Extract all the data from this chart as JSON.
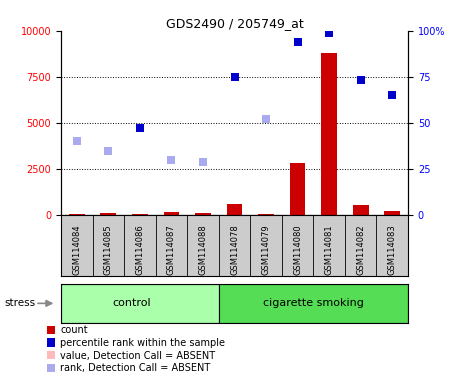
{
  "title": "GDS2490 / 205749_at",
  "samples": [
    "GSM114084",
    "GSM114085",
    "GSM114086",
    "GSM114087",
    "GSM114088",
    "GSM114078",
    "GSM114079",
    "GSM114080",
    "GSM114081",
    "GSM114082",
    "GSM114083"
  ],
  "n_control": 5,
  "n_smoking": 6,
  "count_values": [
    50,
    120,
    80,
    150,
    100,
    600,
    60,
    2800,
    8800,
    550,
    200
  ],
  "percentile_rank_values": [
    null,
    null,
    4700,
    null,
    null,
    7500,
    null,
    9400,
    9900,
    7350,
    6500
  ],
  "rank_absent_values": [
    4000,
    3500,
    null,
    3000,
    2900,
    null,
    5200,
    null,
    null,
    null,
    null
  ],
  "value_absent_values": [
    null,
    null,
    null,
    null,
    null,
    null,
    null,
    null,
    null,
    null,
    null
  ],
  "ylim_left": [
    0,
    10000
  ],
  "yticks_left": [
    0,
    2500,
    5000,
    7500,
    10000
  ],
  "ytick_labels_left": [
    "0",
    "2500",
    "5000",
    "7500",
    "10000"
  ],
  "ytick_labels_right": [
    "0",
    "25",
    "50",
    "75",
    "100%"
  ],
  "count_color": "#cc0000",
  "percentile_color": "#0000cc",
  "rank_absent_color": "#aaaaee",
  "value_absent_color": "#ffbbbb",
  "control_color": "#aaffaa",
  "smoking_color": "#55dd55",
  "label_bg_color": "#cccccc",
  "grid_dotted_color": "black"
}
